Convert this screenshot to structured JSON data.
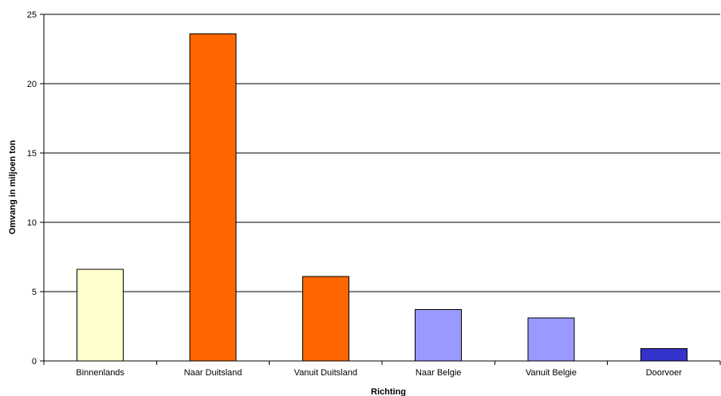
{
  "chart_data": {
    "type": "bar",
    "title": "",
    "xlabel": "Richting",
    "ylabel": "Omvang in miljoen ton",
    "categories": [
      "Binnenlands",
      "Naar Duitsland",
      "Vanuit Duitsland",
      "Naar Belgie",
      "Vanuit Belgie",
      "Doorvoer"
    ],
    "values": [
      6.6,
      23.6,
      6.1,
      3.7,
      3.1,
      0.9
    ],
    "colors": [
      "#ffffcc",
      "#ff6600",
      "#ff6600",
      "#9999ff",
      "#9999ff",
      "#3333cc"
    ],
    "ylim": [
      0,
      25
    ],
    "yticks": [
      0,
      5,
      10,
      15,
      20,
      25
    ],
    "grid": true,
    "legend": "none"
  }
}
